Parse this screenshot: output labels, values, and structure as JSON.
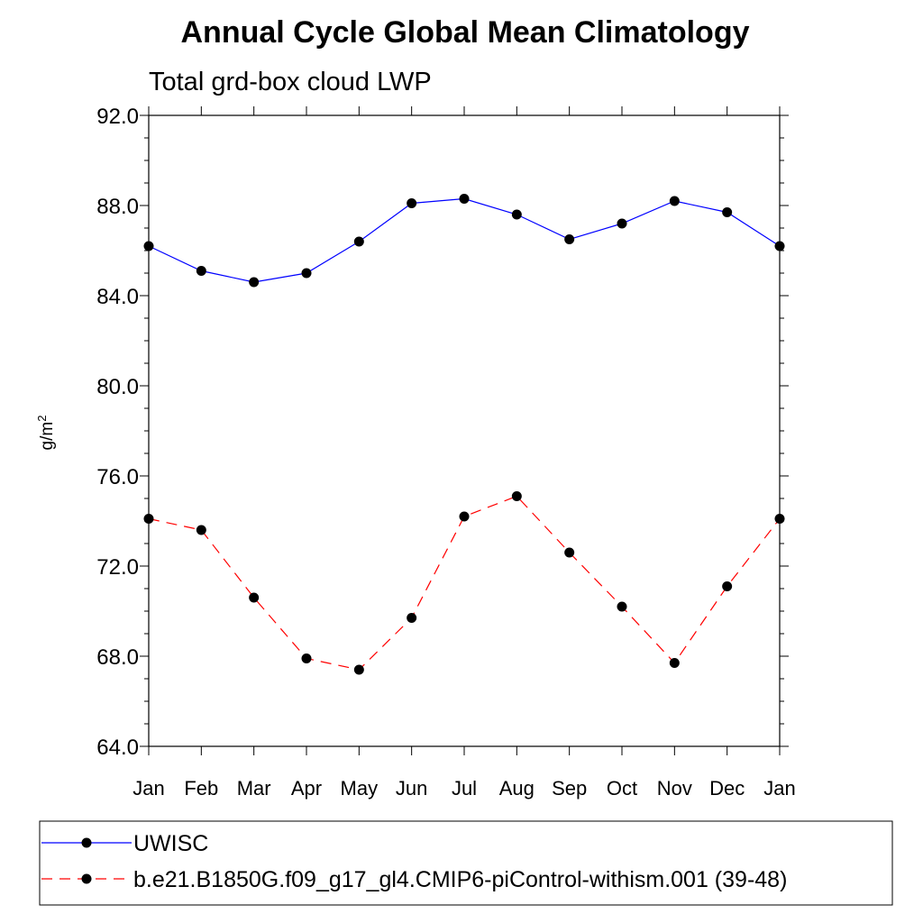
{
  "chart_data": {
    "type": "line",
    "title": "Annual Cycle Global Mean Climatology",
    "subtitle": "Total grd-box cloud LWP",
    "ylabel": "g/m",
    "ylabel_sup": "2",
    "ylim": [
      64.0,
      92.0
    ],
    "yticks": [
      "64.0",
      "68.0",
      "72.0",
      "76.0",
      "80.0",
      "84.0",
      "88.0",
      "92.0"
    ],
    "categories": [
      "Jan",
      "Feb",
      "Mar",
      "Apr",
      "May",
      "Jun",
      "Jul",
      "Aug",
      "Sep",
      "Oct",
      "Nov",
      "Dec",
      "Jan"
    ],
    "grid": false,
    "legend_position": "bottom",
    "series": [
      {
        "name": "UWISC",
        "color": "#0000ff",
        "dashed": false,
        "values": [
          86.2,
          85.1,
          84.6,
          85.0,
          86.4,
          88.1,
          88.3,
          87.6,
          86.5,
          87.2,
          88.2,
          87.7,
          86.2
        ]
      },
      {
        "name": "b.e21.B1850G.f09_g17_gl4.CMIP6-piControl-withism.001 (39-48)",
        "color": "#ff0000",
        "dashed": true,
        "values": [
          74.1,
          73.6,
          70.6,
          67.9,
          67.4,
          69.7,
          74.2,
          75.1,
          72.6,
          70.2,
          67.7,
          71.1,
          74.1
        ]
      }
    ]
  }
}
